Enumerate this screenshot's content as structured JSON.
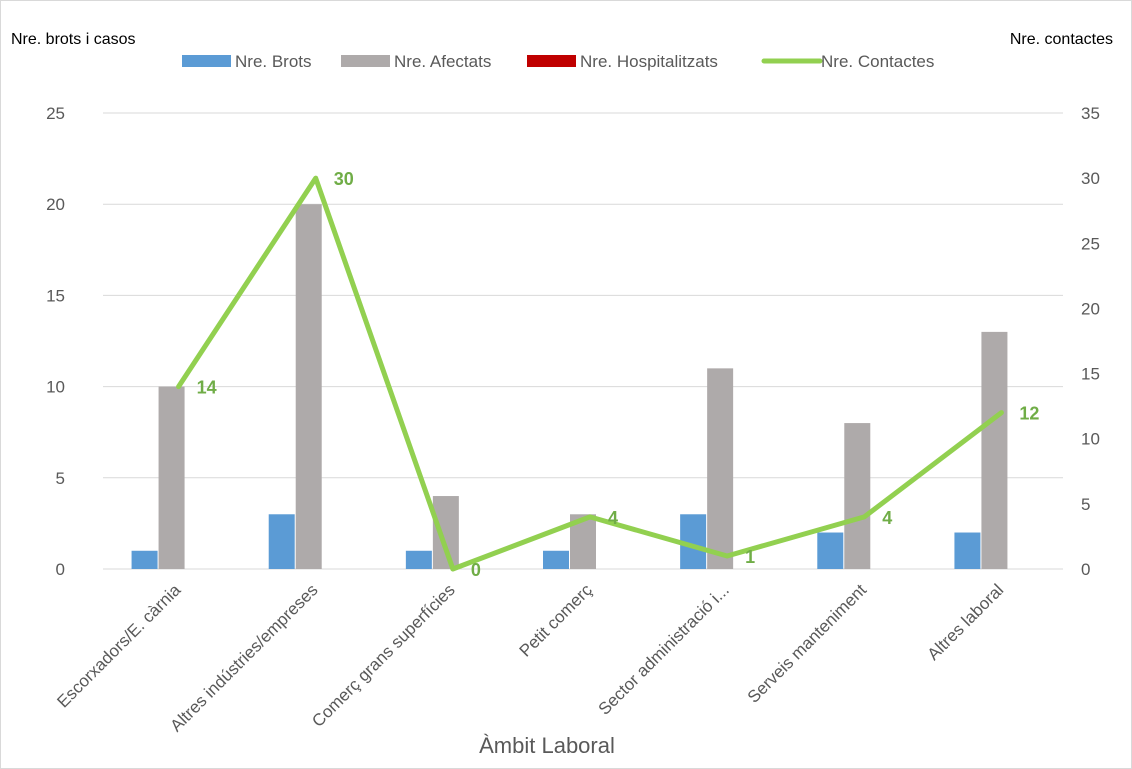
{
  "chart_data": {
    "type": "bar",
    "categories": [
      "Escorxadors/E. càrnia",
      "Altres indústries/empreses",
      "Comerç grans superfícies",
      "Petit comerç",
      "Sector administració i...",
      "Serveis manteniment",
      "Altres laboral"
    ],
    "series": [
      {
        "name": "Nre. Brots",
        "type": "bar",
        "axis": "left",
        "color": "#5b9bd5",
        "values": [
          1,
          3,
          1,
          1,
          3,
          2,
          2
        ]
      },
      {
        "name": "Nre.  Afectats",
        "type": "bar",
        "axis": "left",
        "color": "#aeaaaa",
        "values": [
          10,
          20,
          4,
          3,
          11,
          8,
          13
        ]
      },
      {
        "name": "Nre.  Hospitalitzats",
        "type": "bar",
        "axis": "left",
        "color": "#c00000",
        "values": [
          0,
          0,
          0,
          0,
          0,
          0,
          0
        ]
      },
      {
        "name": "Nre. Contactes",
        "type": "line",
        "axis": "right",
        "color": "#92d050",
        "values": [
          14,
          30,
          0,
          4,
          1,
          4,
          12
        ],
        "data_labels": [
          "14",
          "30",
          "0",
          "4",
          "1",
          "4",
          "12"
        ]
      }
    ],
    "xlabel": "Àmbit Laboral",
    "ylabel": "Nre. brots i casos",
    "y2label": "Nre. contactes",
    "ylim": [
      0,
      25
    ],
    "y2lim": [
      0,
      35
    ],
    "yticks": [
      "0",
      "5",
      "10",
      "15",
      "20",
      "25"
    ],
    "y2ticks": [
      "0",
      "5",
      "10",
      "15",
      "20",
      "25",
      "30",
      "35"
    ],
    "grid": true,
    "legend": "top"
  }
}
